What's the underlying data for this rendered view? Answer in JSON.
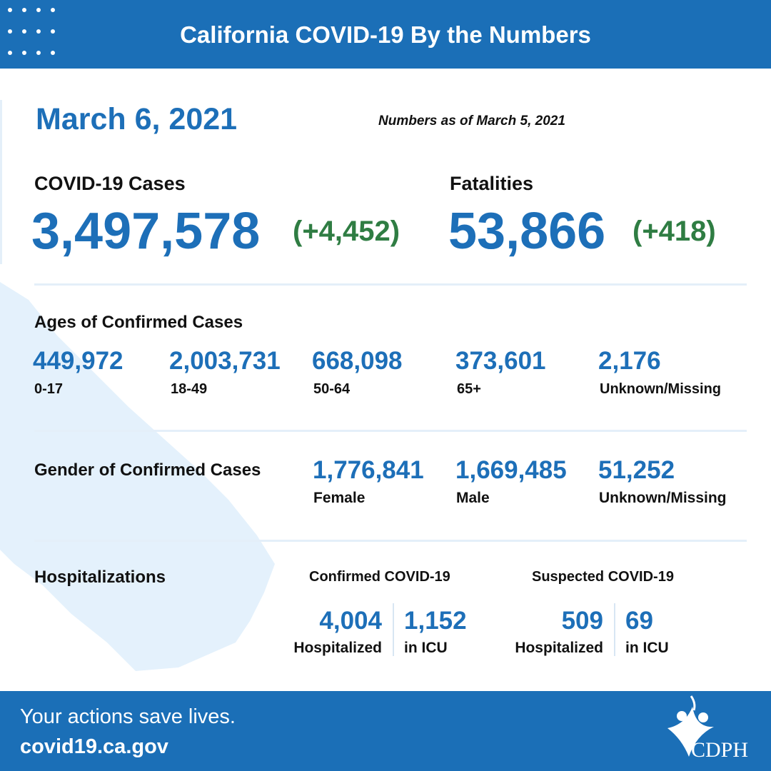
{
  "header": {
    "title": "California COVID-19 By the Numbers"
  },
  "date": "March 6, 2021",
  "as_of": "Numbers as of March 5, 2021",
  "cases": {
    "label": "COVID-19 Cases",
    "total": "3,497,578",
    "change": "(+4,452)"
  },
  "fatalities": {
    "label": "Fatalities",
    "total": "53,866",
    "change": "(+418)"
  },
  "ages": {
    "title": "Ages of Confirmed Cases",
    "groups": [
      {
        "value": "449,972",
        "label": "0-17"
      },
      {
        "value": "2,003,731",
        "label": "18-49"
      },
      {
        "value": "668,098",
        "label": "50-64"
      },
      {
        "value": "373,601",
        "label": "65+"
      },
      {
        "value": "2,176",
        "label": "Unknown/Missing"
      }
    ]
  },
  "gender": {
    "title": "Gender of Confirmed Cases",
    "groups": [
      {
        "value": "1,776,841",
        "label": "Female"
      },
      {
        "value": "1,669,485",
        "label": "Male"
      },
      {
        "value": "51,252",
        "label": "Unknown/Missing"
      }
    ]
  },
  "hospitalizations": {
    "title": "Hospitalizations",
    "confirmed": {
      "title": "Confirmed COVID-19",
      "hospitalized": {
        "value": "4,004",
        "label": "Hospitalized"
      },
      "icu": {
        "value": "1,152",
        "label": "in ICU"
      }
    },
    "suspected": {
      "title": "Suspected COVID-19",
      "hospitalized": {
        "value": "509",
        "label": "Hospitalized"
      },
      "icu": {
        "value": "69",
        "label": "in ICU"
      }
    }
  },
  "footer": {
    "tagline": "Your actions save lives.",
    "url": "covid19.ca.gov",
    "logo": "CDPH"
  }
}
